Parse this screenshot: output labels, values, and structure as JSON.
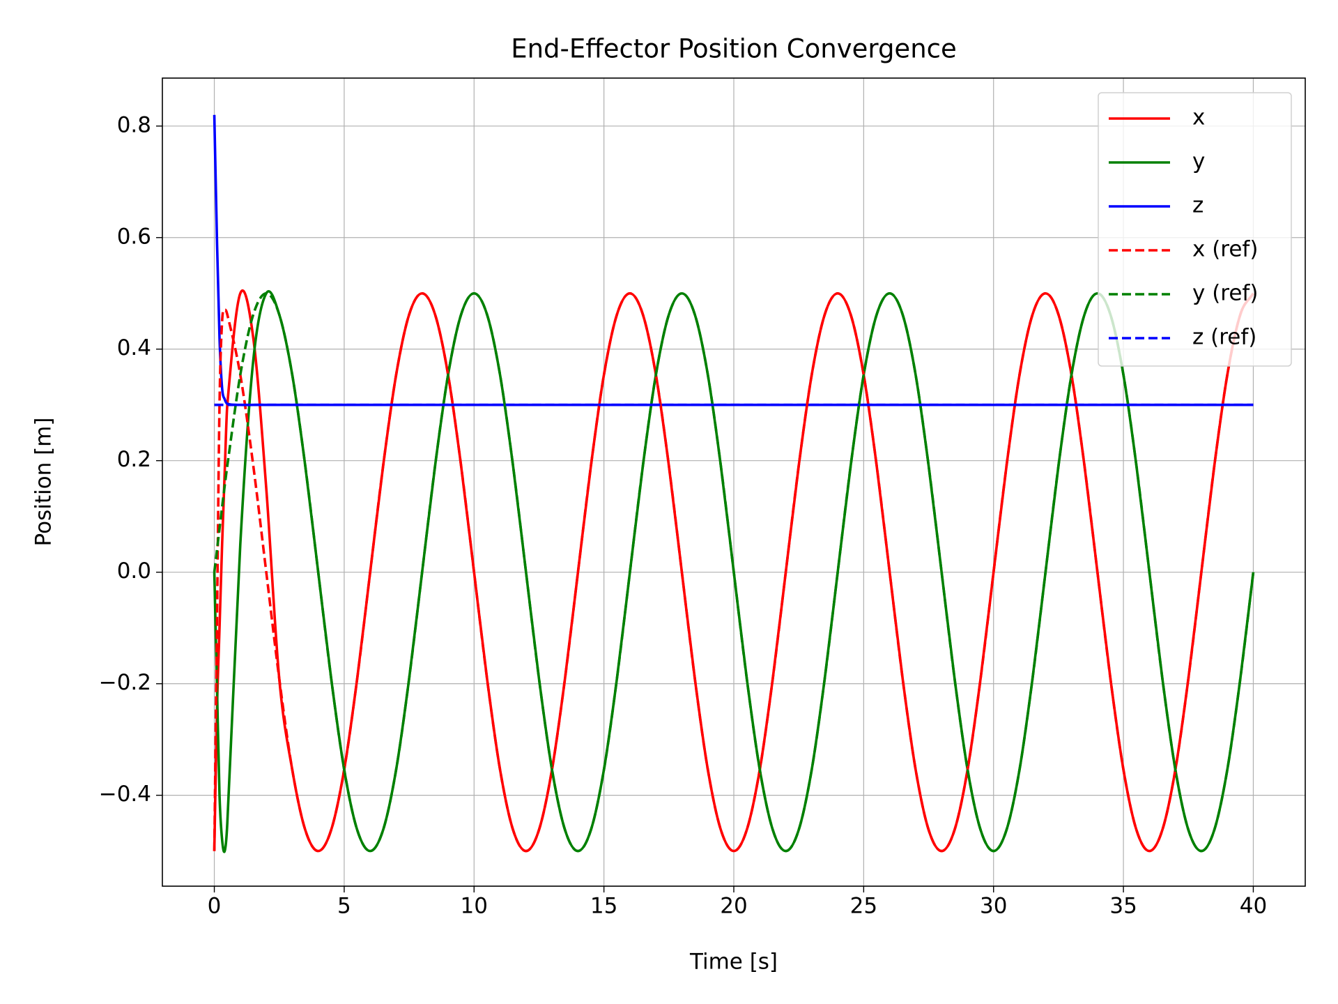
{
  "chart_data": {
    "type": "line",
    "title": "End-Effector Position Convergence",
    "xlabel": "Time [s]",
    "ylabel": "Position [m]",
    "xlim": [
      -2,
      42
    ],
    "ylim": [
      -0.563,
      0.886
    ],
    "xticks": [
      0,
      5,
      10,
      15,
      20,
      25,
      30,
      35,
      40
    ],
    "yticks": [
      {
        "value": -0.4,
        "label": "−0.4"
      },
      {
        "value": -0.2,
        "label": "−0.2"
      },
      {
        "value": 0,
        "label": "0.0"
      },
      0.2,
      0.4,
      0.6,
      0.8
    ],
    "grid": true,
    "legend": "upper right",
    "x": [
      0,
      0.1,
      0.2,
      0.3,
      0.4,
      0.5,
      1,
      1.5,
      2,
      2.5,
      3,
      3.5,
      4,
      4.5,
      5,
      5.5,
      6,
      6.5,
      7,
      7.5,
      8,
      8.5,
      9,
      9.5,
      10,
      10.5,
      11,
      11.5,
      12,
      12.5,
      13,
      13.5,
      14,
      14.5,
      15,
      15.5,
      16,
      16.5,
      17,
      17.5,
      18,
      18.5,
      19,
      19.5,
      20,
      20.5,
      21,
      21.5,
      22,
      22.5,
      23,
      23.5,
      24,
      24.5,
      25,
      25.5,
      26,
      26.5,
      27,
      27.5,
      28,
      28.5,
      29,
      29.5,
      30,
      30.5,
      31,
      31.5,
      32,
      32.5,
      33,
      33.5,
      34,
      34.5,
      35,
      35.5,
      36,
      36.5,
      37,
      37.5,
      38,
      38.5,
      39,
      39.5,
      40
    ],
    "series": [
      {
        "name": "x",
        "color": "#ff0000",
        "linestyle": "solid",
        "values": [
          -0.5,
          -0.25,
          -0.1,
          0.05,
          0.18,
          0.3,
          0.5,
          0.42,
          0.15,
          -0.191,
          -0.354,
          -0.462,
          -0.5,
          -0.462,
          -0.354,
          -0.191,
          0,
          0.191,
          0.354,
          0.462,
          0.5,
          0.462,
          0.354,
          0.191,
          0,
          -0.191,
          -0.354,
          -0.462,
          -0.5,
          -0.462,
          -0.354,
          -0.191,
          0,
          0.191,
          0.354,
          0.462,
          0.5,
          0.462,
          0.354,
          0.191,
          0,
          -0.191,
          -0.354,
          -0.462,
          -0.5,
          -0.462,
          -0.354,
          -0.191,
          0,
          0.191,
          0.354,
          0.462,
          0.5,
          0.462,
          0.354,
          0.191,
          0,
          -0.191,
          -0.354,
          -0.462,
          -0.5,
          -0.462,
          -0.354,
          -0.191,
          0,
          0.191,
          0.354,
          0.462,
          0.5,
          0.462,
          0.354,
          0.191,
          0,
          -0.191,
          -0.354,
          -0.462,
          -0.5,
          -0.462,
          -0.354,
          -0.191,
          0,
          0.191,
          0.354,
          0.462,
          0.5
        ]
      },
      {
        "name": "y",
        "color": "#008000",
        "linestyle": "solid",
        "values": [
          0,
          -0.2,
          -0.4,
          -0.48,
          -0.5,
          -0.45,
          0.05,
          0.38,
          0.5,
          0.462,
          0.354,
          0.191,
          0,
          -0.191,
          -0.354,
          -0.462,
          -0.5,
          -0.462,
          -0.354,
          -0.191,
          0,
          0.191,
          0.354,
          0.462,
          0.5,
          0.462,
          0.354,
          0.191,
          0,
          -0.191,
          -0.354,
          -0.462,
          -0.5,
          -0.462,
          -0.354,
          -0.191,
          0,
          0.191,
          0.354,
          0.462,
          0.5,
          0.462,
          0.354,
          0.191,
          0,
          -0.191,
          -0.354,
          -0.462,
          -0.5,
          -0.462,
          -0.354,
          -0.191,
          0,
          0.191,
          0.354,
          0.462,
          0.5,
          0.462,
          0.354,
          0.191,
          0,
          -0.191,
          -0.354,
          -0.462,
          -0.5,
          -0.462,
          -0.354,
          -0.191,
          0,
          0.191,
          0.354,
          0.462,
          0.5,
          0.462,
          0.354,
          0.191,
          0,
          -0.191,
          -0.354,
          -0.462,
          -0.5,
          -0.462,
          -0.354,
          -0.191,
          0
        ]
      },
      {
        "name": "z",
        "color": "#0000ff",
        "linestyle": "solid",
        "values": [
          0.82,
          0.6,
          0.42,
          0.33,
          0.31,
          0.302,
          0.3,
          0.3,
          0.3,
          0.3,
          0.3,
          0.3,
          0.3,
          0.3,
          0.3,
          0.3,
          0.3,
          0.3,
          0.3,
          0.3,
          0.3,
          0.3,
          0.3,
          0.3,
          0.3,
          0.3,
          0.3,
          0.3,
          0.3,
          0.3,
          0.3,
          0.3,
          0.3,
          0.3,
          0.3,
          0.3,
          0.3,
          0.3,
          0.3,
          0.3,
          0.3,
          0.3,
          0.3,
          0.3,
          0.3,
          0.3,
          0.3,
          0.3,
          0.3,
          0.3,
          0.3,
          0.3,
          0.3,
          0.3,
          0.3,
          0.3,
          0.3,
          0.3,
          0.3,
          0.3,
          0.3,
          0.3,
          0.3,
          0.3,
          0.3,
          0.3,
          0.3,
          0.3,
          0.3,
          0.3,
          0.3,
          0.3,
          0.3,
          0.3,
          0.3,
          0.3,
          0.3,
          0.3,
          0.3,
          0.3,
          0.3,
          0.3,
          0.3,
          0.3,
          0.3
        ]
      },
      {
        "name": "x (ref)",
        "color": "#ff0000",
        "linestyle": "dashed",
        "values": [
          -0.5,
          -0.1,
          0.3,
          0.45,
          0.47,
          0.462,
          0.354,
          0.191,
          0,
          -0.191,
          -0.354,
          -0.462,
          -0.5,
          -0.462,
          -0.354,
          -0.191,
          0,
          0.191,
          0.354,
          0.462,
          0.5,
          0.462,
          0.354,
          0.191,
          0,
          -0.191,
          -0.354,
          -0.462,
          -0.5,
          -0.462,
          -0.354,
          -0.191,
          0,
          0.191,
          0.354,
          0.462,
          0.5,
          0.462,
          0.354,
          0.191,
          0,
          -0.191,
          -0.354,
          -0.462,
          -0.5,
          -0.462,
          -0.354,
          -0.191,
          0,
          0.191,
          0.354,
          0.462,
          0.5,
          0.462,
          0.354,
          0.191,
          0,
          -0.191,
          -0.354,
          -0.462,
          -0.5,
          -0.462,
          -0.354,
          -0.191,
          0,
          0.191,
          0.354,
          0.462,
          0.5,
          0.462,
          0.354,
          0.191,
          0,
          -0.191,
          -0.354,
          -0.462,
          -0.5,
          -0.462,
          -0.354,
          -0.191,
          0,
          0.191,
          0.354,
          0.462,
          0.5
        ]
      },
      {
        "name": "y (ref)",
        "color": "#008000",
        "linestyle": "dashed",
        "values": [
          0,
          0.039,
          0.078,
          0.117,
          0.155,
          0.191,
          0.354,
          0.462,
          0.5,
          0.462,
          0.354,
          0.191,
          0,
          -0.191,
          -0.354,
          -0.462,
          -0.5,
          -0.462,
          -0.354,
          -0.191,
          0,
          0.191,
          0.354,
          0.462,
          0.5,
          0.462,
          0.354,
          0.191,
          0,
          -0.191,
          -0.354,
          -0.462,
          -0.5,
          -0.462,
          -0.354,
          -0.191,
          0,
          0.191,
          0.354,
          0.462,
          0.5,
          0.462,
          0.354,
          0.191,
          0,
          -0.191,
          -0.354,
          -0.462,
          -0.5,
          -0.462,
          -0.354,
          -0.191,
          0,
          0.191,
          0.354,
          0.462,
          0.5,
          0.462,
          0.354,
          0.191,
          0,
          -0.191,
          -0.354,
          -0.462,
          -0.5,
          -0.462,
          -0.354,
          -0.191,
          0,
          0.191,
          0.354,
          0.462,
          0.5,
          0.462,
          0.354,
          0.191,
          0,
          -0.191,
          -0.354,
          -0.462,
          -0.5,
          -0.462,
          -0.354,
          -0.191,
          0
        ]
      },
      {
        "name": "z (ref)",
        "color": "#0000ff",
        "linestyle": "dashed",
        "values": [
          0.3,
          0.3,
          0.3,
          0.3,
          0.3,
          0.3,
          0.3,
          0.3,
          0.3,
          0.3,
          0.3,
          0.3,
          0.3,
          0.3,
          0.3,
          0.3,
          0.3,
          0.3,
          0.3,
          0.3,
          0.3,
          0.3,
          0.3,
          0.3,
          0.3,
          0.3,
          0.3,
          0.3,
          0.3,
          0.3,
          0.3,
          0.3,
          0.3,
          0.3,
          0.3,
          0.3,
          0.3,
          0.3,
          0.3,
          0.3,
          0.3,
          0.3,
          0.3,
          0.3,
          0.3,
          0.3,
          0.3,
          0.3,
          0.3,
          0.3,
          0.3,
          0.3,
          0.3,
          0.3,
          0.3,
          0.3,
          0.3,
          0.3,
          0.3,
          0.3,
          0.3,
          0.3,
          0.3,
          0.3,
          0.3,
          0.3,
          0.3,
          0.3,
          0.3,
          0.3,
          0.3,
          0.3,
          0.3,
          0.3,
          0.3,
          0.3,
          0.3,
          0.3,
          0.3,
          0.3,
          0.3,
          0.3,
          0.3,
          0.3,
          0.3
        ]
      }
    ]
  }
}
